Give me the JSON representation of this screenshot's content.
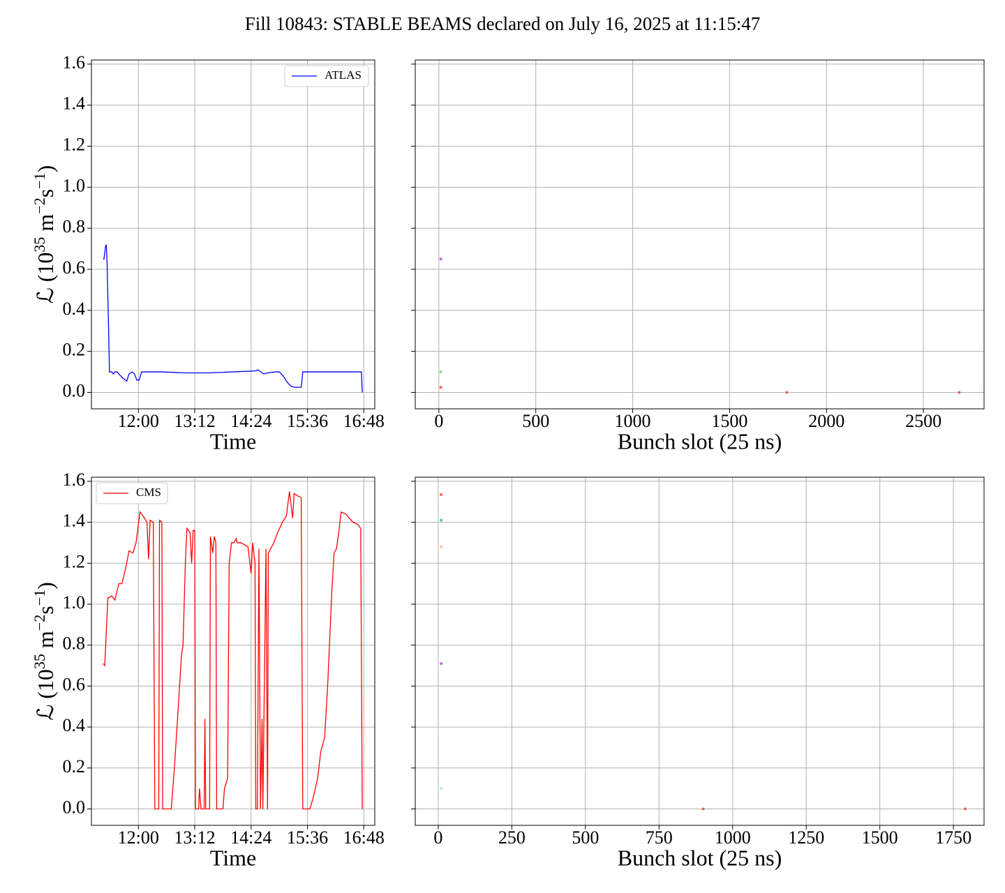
{
  "title": "Fill 10843: STABLE BEAMS declared on July 16, 2025 at 11:15:47",
  "chart_data": [
    {
      "type": "line",
      "xlabel": "Time",
      "ylabel": [
        "ℒ (10",
        "35",
        " m",
        "−2",
        "s",
        "−1",
        ")"
      ],
      "legend": "upper right",
      "grid": true,
      "xlim": [
        "11:00",
        "17:02"
      ],
      "xticks": [
        "12:00",
        "13:12",
        "14:24",
        "15:36",
        "16:48"
      ],
      "ylim": [
        -0.08,
        1.62
      ],
      "yticks": [
        {
          "value": 0,
          "label": "0.0"
        },
        0.2,
        0.4,
        0.6,
        0.8,
        {
          "value": 1,
          "label": "1.0"
        },
        1.2,
        1.4,
        1.6
      ],
      "x": [
        "11:15",
        "11:16",
        "11:18",
        "11:19",
        "11:20",
        "11:22",
        "11:23",
        "11:26",
        "11:28",
        "11:30",
        "11:33",
        "11:35",
        "11:40",
        "11:45",
        "11:48",
        "11:52",
        "11:55",
        "11:58",
        "12:01",
        "12:04",
        "12:30",
        "13:00",
        "13:30",
        "14:00",
        "14:30",
        "14:33",
        "14:40",
        "14:45",
        "14:55",
        "15:00",
        "15:05",
        "15:10",
        "15:15",
        "15:20",
        "15:25",
        "15:28",
        "15:29",
        "15:30",
        "16:00",
        "16:30",
        "16:45",
        "16:46"
      ],
      "series": [
        {
          "name": "ATLAS",
          "color": "#0000ff",
          "values": [
            0.65,
            0.65,
            0.71,
            0.72,
            0.63,
            0.3,
            0.1,
            0.1,
            0.09,
            0.1,
            0.1,
            0.09,
            0.07,
            0.055,
            0.09,
            0.1,
            0.09,
            0.06,
            0.06,
            0.1,
            0.1,
            0.095,
            0.095,
            0.1,
            0.105,
            0.11,
            0.09,
            0.095,
            0.1,
            0.1,
            0.08,
            0.05,
            0.03,
            0.025,
            0.025,
            0.025,
            0.06,
            0.1,
            0.1,
            0.1,
            0.1,
            0.0
          ]
        }
      ]
    },
    {
      "type": "scatter",
      "xlabel": "Bunch slot (25 ns)",
      "grid": true,
      "show_ytick_labels": false,
      "xlim": [
        -122,
        2813
      ],
      "xticks": [
        0,
        500,
        1000,
        1500,
        2000,
        2500
      ],
      "ylim": [
        -0.08,
        1.62
      ],
      "yticks": [
        0,
        0.2,
        0.4,
        0.6,
        0.8,
        1,
        1.2,
        1.4,
        1.6
      ],
      "x": [
        10,
        10,
        10,
        1795,
        2685
      ],
      "values": [
        0.65,
        0.1,
        0.025,
        0,
        0
      ],
      "colors": [
        "#b44fd6",
        "#7fcf7a",
        "#e0533c",
        "#e0533c",
        "#e0533c"
      ]
    },
    {
      "type": "line",
      "xlabel": "Time",
      "ylabel": [
        "ℒ (10",
        "35",
        " m",
        "−2",
        "s",
        "−1",
        ")"
      ],
      "legend": "upper left",
      "grid": true,
      "xlim": [
        "11:00",
        "17:02"
      ],
      "xticks": [
        "12:00",
        "13:12",
        "14:24",
        "15:36",
        "16:48"
      ],
      "ylim": [
        -0.08,
        1.62
      ],
      "yticks": [
        {
          "value": 0,
          "label": "0.0"
        },
        0.2,
        0.4,
        0.6,
        0.8,
        {
          "value": 1,
          "label": "1.0"
        },
        1.2,
        1.4,
        1.6
      ],
      "x": [
        "11:15",
        "11:17",
        "11:21",
        "11:26",
        "11:30",
        "11:35",
        "11:39",
        "11:44",
        "11:48",
        "11:53",
        "11:57",
        "12:02",
        "12:06",
        "12:11",
        "12:13",
        "12:15",
        "12:19",
        "12:21",
        "12:26",
        "12:27",
        "12:30",
        "12:31",
        "12:42",
        "12:46",
        "12:51",
        "12:55",
        "12:57",
        "13:00",
        "13:02",
        "13:06",
        "13:08",
        "13:10",
        "13:12",
        "13:13",
        "13:17",
        "13:18",
        "13:20",
        "13:24",
        "13:25",
        "13:26",
        "13:31",
        "13:32",
        "13:35",
        "13:37",
        "13:39",
        "13:40",
        "13:48",
        "13:50",
        "13:54",
        "13:56",
        "13:59",
        "14:02",
        "14:05",
        "14:06",
        "14:11",
        "14:20",
        "14:24",
        "14:26",
        "14:29",
        "14:30",
        "14:32",
        "14:34",
        "14:36",
        "14:38",
        "14:39",
        "14:43",
        "14:45",
        "14:46",
        "14:53",
        "14:58",
        "15:04",
        "15:09",
        "15:13",
        "15:17",
        "15:19",
        "15:23",
        "15:28",
        "15:30",
        "15:39",
        "15:43",
        "15:49",
        "15:53",
        "15:58",
        "16:02",
        "16:07",
        "16:10",
        "16:13",
        "16:16",
        "16:19",
        "16:25",
        "16:34",
        "16:40",
        "16:44",
        "16:46"
      ],
      "series": [
        {
          "name": "CMS",
          "color": "#ff0000",
          "values": [
            0.71,
            0.7,
            1.03,
            1.04,
            1.02,
            1.1,
            1.1,
            1.18,
            1.26,
            1.25,
            1.3,
            1.45,
            1.43,
            1.4,
            1.22,
            1.41,
            1.4,
            0,
            0,
            1.41,
            1.4,
            0,
            0,
            0.2,
            0.5,
            0.75,
            0.8,
            1.2,
            1.37,
            1.35,
            1.2,
            1.36,
            1.36,
            0,
            0,
            0.1,
            0,
            0,
            0.44,
            0,
            0,
            1.33,
            1.25,
            1.33,
            1.3,
            0,
            0,
            0.1,
            0.15,
            1.2,
            1.3,
            1.3,
            1.32,
            1.3,
            1.3,
            1.28,
            1.15,
            1.3,
            1.2,
            0,
            0,
            1.27,
            0,
            0.44,
            0,
            1.27,
            0,
            1.25,
            1.3,
            1.35,
            1.4,
            1.43,
            1.55,
            1.42,
            1.54,
            1.53,
            1.52,
            0,
            0,
            0.05,
            0.15,
            0.28,
            0.35,
            0.62,
            1.05,
            1.25,
            1.27,
            1.35,
            1.45,
            1.44,
            1.4,
            1.39,
            1.37,
            0
          ]
        }
      ]
    },
    {
      "type": "scatter",
      "xlabel": "Bunch slot (25 ns)",
      "grid": true,
      "show_ytick_labels": false,
      "xlim": [
        -78,
        1854
      ],
      "xticks": [
        0,
        250,
        500,
        750,
        1000,
        1250,
        1500,
        1750
      ],
      "ylim": [
        -0.08,
        1.62
      ],
      "yticks": [
        0,
        0.2,
        0.4,
        0.6,
        0.8,
        1,
        1.2,
        1.4,
        1.6
      ],
      "x": [
        10,
        10,
        10,
        10,
        10,
        900,
        1790
      ],
      "values": [
        1.535,
        1.41,
        1.28,
        0.71,
        0.1,
        0,
        0
      ],
      "colors": [
        "#e0533c",
        "#2bb5c9",
        "#f7b98a",
        "#b44fd6",
        "#aee8e8",
        "#e0533c",
        "#e0533c"
      ]
    }
  ]
}
